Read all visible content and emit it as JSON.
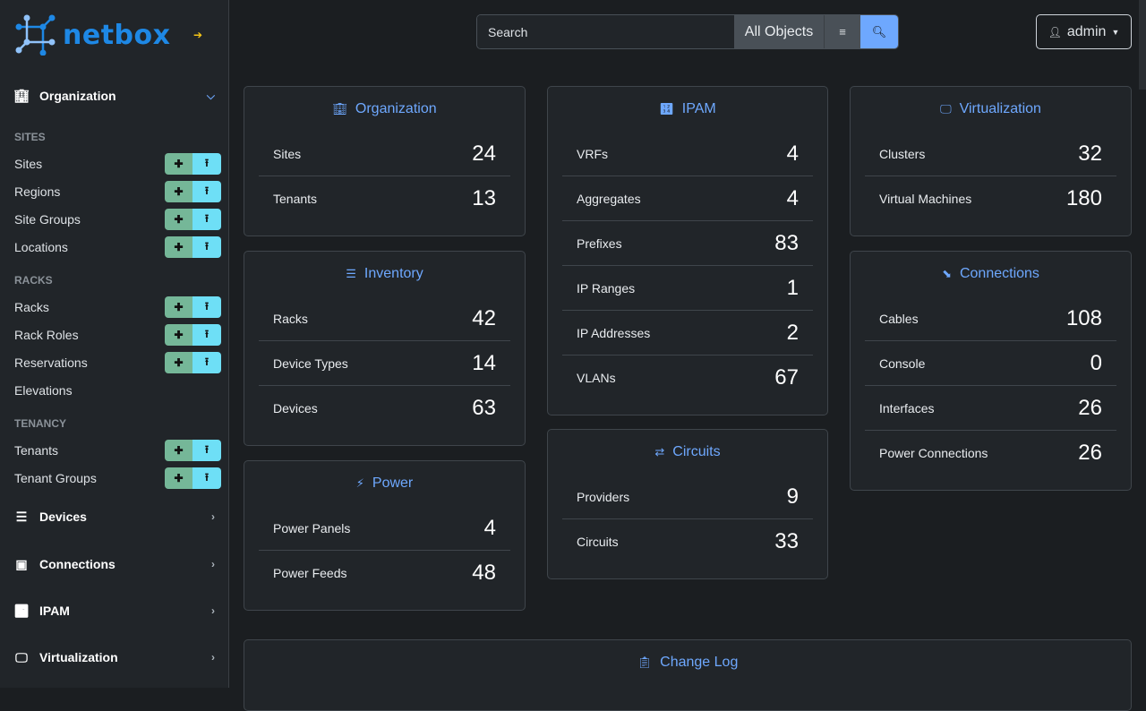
{
  "brand": {
    "name": "netbox"
  },
  "sidebar": {
    "sections": [
      {
        "label": "Organization",
        "icon": "building-icon",
        "expanded": true
      },
      {
        "label": "Devices",
        "icon": "server-icon",
        "expanded": false
      },
      {
        "label": "Connections",
        "icon": "ethernet-icon",
        "expanded": false
      },
      {
        "label": "IPAM",
        "icon": "counter-icon",
        "expanded": false
      },
      {
        "label": "Virtualization",
        "icon": "monitor-icon",
        "expanded": false
      }
    ],
    "groups": [
      {
        "label": "SITES",
        "items": [
          {
            "label": "Sites",
            "buttons": true
          },
          {
            "label": "Regions",
            "buttons": true
          },
          {
            "label": "Site Groups",
            "buttons": true
          },
          {
            "label": "Locations",
            "buttons": true
          }
        ]
      },
      {
        "label": "RACKS",
        "items": [
          {
            "label": "Racks",
            "buttons": true
          },
          {
            "label": "Rack Roles",
            "buttons": true
          },
          {
            "label": "Reservations",
            "buttons": true
          },
          {
            "label": "Elevations",
            "buttons": false
          }
        ]
      },
      {
        "label": "TENANCY",
        "items": [
          {
            "label": "Tenants",
            "buttons": true
          },
          {
            "label": "Tenant Groups",
            "buttons": true
          }
        ]
      }
    ]
  },
  "search": {
    "placeholder": "Search",
    "scope": "All Objects"
  },
  "user": {
    "name": "admin"
  },
  "cards": [
    {
      "title": "Organization",
      "icon": "building-icon",
      "rows": [
        {
          "label": "Sites",
          "count": "24"
        },
        {
          "label": "Tenants",
          "count": "13"
        }
      ]
    },
    {
      "title": "Inventory",
      "icon": "server-icon",
      "rows": [
        {
          "label": "Racks",
          "count": "42"
        },
        {
          "label": "Device Types",
          "count": "14"
        },
        {
          "label": "Devices",
          "count": "63"
        }
      ]
    },
    {
      "title": "Power",
      "icon": "lightning-icon",
      "rows": [
        {
          "label": "Power Panels",
          "count": "4"
        },
        {
          "label": "Power Feeds",
          "count": "48"
        }
      ]
    },
    {
      "title": "IPAM",
      "icon": "counter-icon",
      "rows": [
        {
          "label": "VRFs",
          "count": "4"
        },
        {
          "label": "Aggregates",
          "count": "4"
        },
        {
          "label": "Prefixes",
          "count": "83"
        },
        {
          "label": "IP Ranges",
          "count": "1"
        },
        {
          "label": "IP Addresses",
          "count": "2"
        },
        {
          "label": "VLANs",
          "count": "67"
        }
      ]
    },
    {
      "title": "Circuits",
      "icon": "transit-icon",
      "rows": [
        {
          "label": "Providers",
          "count": "9"
        },
        {
          "label": "Circuits",
          "count": "33"
        }
      ]
    },
    {
      "title": "Virtualization",
      "icon": "monitor-icon",
      "rows": [
        {
          "label": "Clusters",
          "count": "32"
        },
        {
          "label": "Virtual Machines",
          "count": "180"
        }
      ]
    },
    {
      "title": "Connections",
      "icon": "cable-icon",
      "rows": [
        {
          "label": "Cables",
          "count": "108"
        },
        {
          "label": "Console",
          "count": "0"
        },
        {
          "label": "Interfaces",
          "count": "26"
        },
        {
          "label": "Power Connections",
          "count": "26"
        }
      ]
    },
    {
      "title": "Change Log",
      "icon": "clipboard-clock-icon",
      "rows": []
    }
  ],
  "colors": {
    "accent": "#6ea8fe",
    "brand": "#1e88e5",
    "add": "#75b798",
    "import": "#6edff6"
  }
}
